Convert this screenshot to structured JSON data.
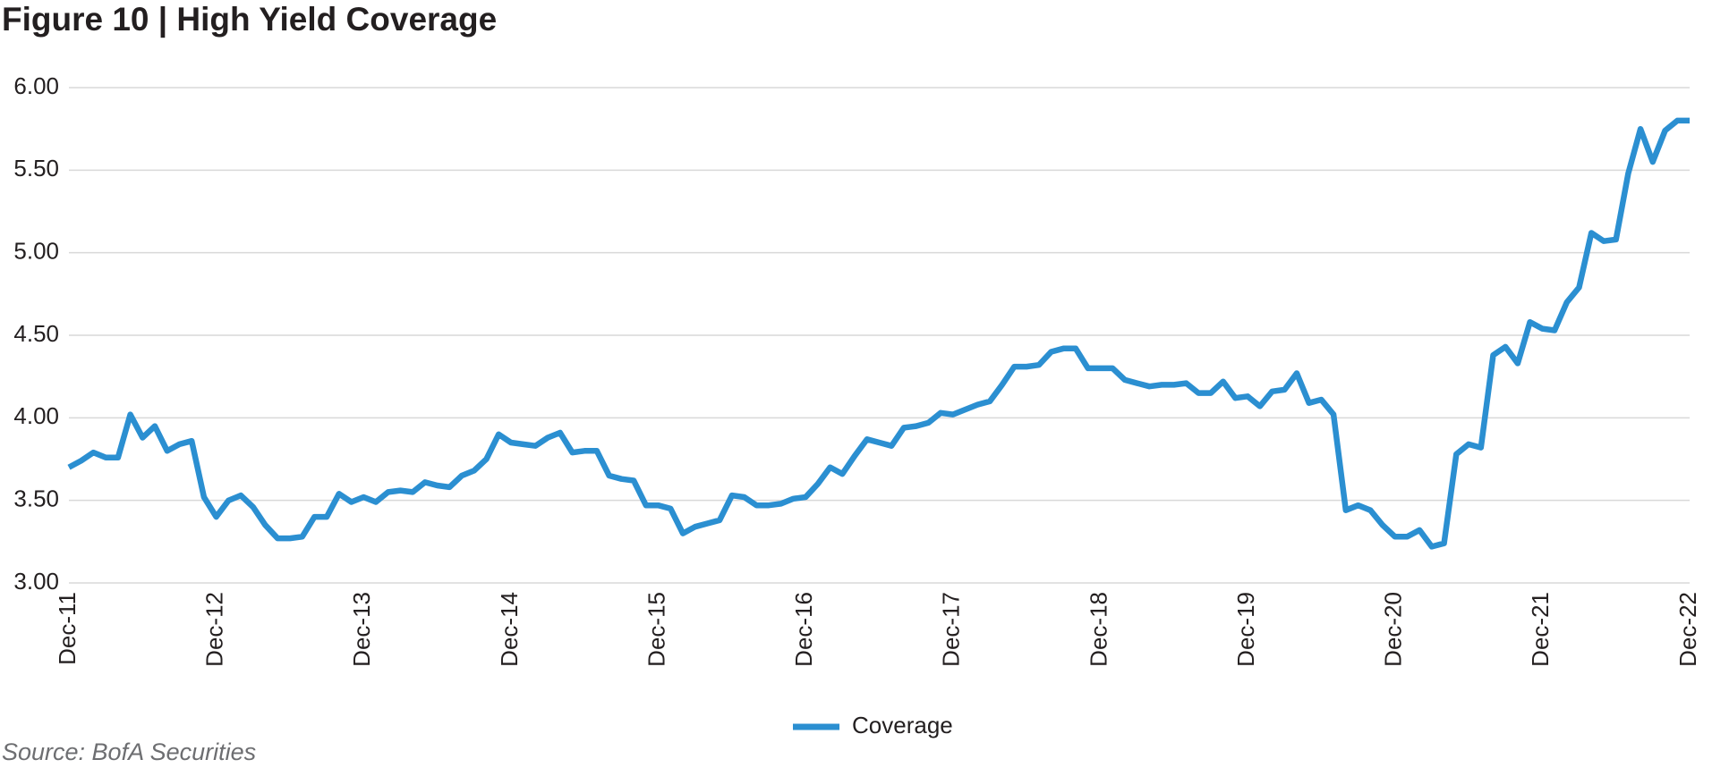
{
  "chart_data": {
    "type": "line",
    "title": "Figure 10  |  High Yield Coverage",
    "source": "Source: BofA Securities",
    "categories": [
      "Dec-11",
      null,
      null,
      null,
      null,
      null,
      null,
      null,
      null,
      null,
      null,
      null,
      "Dec-12",
      null,
      null,
      null,
      null,
      null,
      null,
      null,
      null,
      null,
      null,
      null,
      "Dec-13",
      null,
      null,
      null,
      null,
      null,
      null,
      null,
      null,
      null,
      null,
      null,
      "Dec-14",
      null,
      null,
      null,
      null,
      null,
      null,
      null,
      null,
      null,
      null,
      null,
      "Dec-15",
      null,
      null,
      null,
      null,
      null,
      null,
      null,
      null,
      null,
      null,
      null,
      "Dec-16",
      null,
      null,
      null,
      null,
      null,
      null,
      null,
      null,
      null,
      null,
      null,
      "Dec-17",
      null,
      null,
      null,
      null,
      null,
      null,
      null,
      null,
      null,
      null,
      null,
      "Dec-18",
      null,
      null,
      null,
      null,
      null,
      null,
      null,
      null,
      null,
      null,
      null,
      "Dec-19",
      null,
      null,
      null,
      null,
      null,
      null,
      null,
      null,
      null,
      null,
      null,
      "Dec-20",
      null,
      null,
      null,
      null,
      null,
      null,
      null,
      null,
      null,
      null,
      null,
      "Dec-21",
      null,
      null,
      null,
      null,
      null,
      null,
      null,
      null,
      null,
      null,
      null,
      "Dec-22"
    ],
    "series": [
      {
        "name": "Coverage",
        "color": "#2b8fd1",
        "values": [
          3.7,
          3.74,
          3.79,
          3.76,
          3.76,
          4.02,
          3.88,
          3.95,
          3.8,
          3.84,
          3.86,
          3.52,
          3.4,
          3.5,
          3.53,
          3.46,
          3.35,
          3.27,
          3.27,
          3.28,
          3.4,
          3.4,
          3.54,
          3.49,
          3.52,
          3.49,
          3.55,
          3.56,
          3.55,
          3.61,
          3.59,
          3.58,
          3.65,
          3.68,
          3.75,
          3.9,
          3.85,
          3.84,
          3.83,
          3.88,
          3.91,
          3.79,
          3.8,
          3.8,
          3.65,
          3.63,
          3.62,
          3.47,
          3.47,
          3.45,
          3.3,
          3.34,
          3.36,
          3.38,
          3.53,
          3.52,
          3.47,
          3.47,
          3.48,
          3.51,
          3.52,
          3.6,
          3.7,
          3.66,
          3.77,
          3.87,
          3.85,
          3.83,
          3.94,
          3.95,
          3.97,
          4.03,
          4.02,
          4.05,
          4.08,
          4.1,
          4.2,
          4.31,
          4.31,
          4.32,
          4.4,
          4.42,
          4.42,
          4.3,
          4.3,
          4.3,
          4.23,
          4.21,
          4.19,
          4.2,
          4.2,
          4.21,
          4.15,
          4.15,
          4.22,
          4.12,
          4.13,
          4.07,
          4.16,
          4.17,
          4.27,
          4.09,
          4.11,
          4.02,
          3.44,
          3.47,
          3.44,
          3.35,
          3.28,
          3.28,
          3.32,
          3.22,
          3.24,
          3.78,
          3.84,
          3.82,
          4.38,
          4.43,
          4.33,
          4.58,
          4.54,
          4.53,
          4.7,
          4.79,
          5.12,
          5.07,
          5.08,
          5.48,
          5.75,
          5.55,
          5.74,
          5.8,
          5.8
        ]
      }
    ],
    "ylim": [
      3,
      6
    ],
    "yticks": [
      {
        "value": 3,
        "label": "3.00"
      },
      {
        "value": 3.5,
        "label": "3.50"
      },
      {
        "value": 4,
        "label": "4.00"
      },
      {
        "value": 4.5,
        "label": "4.50"
      },
      {
        "value": 5,
        "label": "5.00"
      },
      {
        "value": 5.5,
        "label": "5.50"
      },
      {
        "value": 6,
        "label": "6.00"
      }
    ],
    "grid": true,
    "legend": "bottom"
  }
}
